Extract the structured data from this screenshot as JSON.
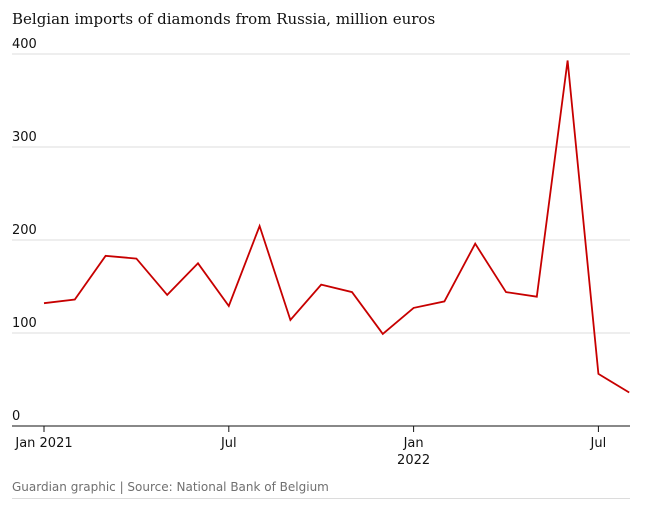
{
  "chart_data": {
    "type": "line",
    "title": "Belgian imports of diamonds from Russia, million euros",
    "xlabel": "",
    "ylabel": "",
    "ylim": [
      0,
      400
    ],
    "y_ticks": [
      0,
      100,
      200,
      300,
      400
    ],
    "y_tick_labels": [
      "0",
      "100",
      "200",
      "300",
      "400"
    ],
    "x": [
      "2021-01",
      "2021-02",
      "2021-03",
      "2021-04",
      "2021-05",
      "2021-06",
      "2021-07",
      "2021-08",
      "2021-09",
      "2021-10",
      "2021-11",
      "2021-12",
      "2022-01",
      "2022-02",
      "2022-03",
      "2022-04",
      "2022-05",
      "2022-06",
      "2022-07",
      "2022-08"
    ],
    "x_ticks": [
      {
        "x": "2021-01",
        "line1": "Jan 2021",
        "line2": ""
      },
      {
        "x": "2021-07",
        "line1": "Jul",
        "line2": ""
      },
      {
        "x": "2022-01",
        "line1": "Jan",
        "line2": "2022"
      },
      {
        "x": "2022-07",
        "line1": "Jul",
        "line2": ""
      }
    ],
    "series": [
      {
        "values": [
          132,
          136,
          183,
          180,
          141,
          175,
          129,
          215,
          114,
          152,
          144,
          99,
          127,
          134,
          196,
          144,
          139,
          393,
          56,
          36
        ]
      }
    ],
    "grid": true,
    "legend": "none"
  },
  "colors": {
    "line": "#c70000",
    "grid": "#dcdcdc",
    "axis": "#121212"
  },
  "footer": {
    "source": "Guardian graphic | Source: National Bank of Belgium"
  }
}
